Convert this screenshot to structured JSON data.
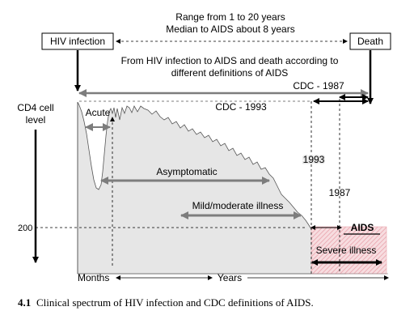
{
  "top_note": {
    "line1": "Range from 1 to 20 years",
    "line2": "Median to AIDS about 8 years"
  },
  "boxes": {
    "hiv_infection": "HIV infection",
    "death": "Death"
  },
  "definitions_note": {
    "line1": "From HIV infection to AIDS and death according to",
    "line2": "different definitions of AIDS"
  },
  "cdc": {
    "cdc_1987": "CDC - 1987",
    "cdc_1993": "CDC - 1993",
    "year_1993": "1993",
    "year_1987": "1987"
  },
  "y_axis": {
    "label_line1": "CD4 cell",
    "label_line2": "level",
    "threshold": "200"
  },
  "phases": {
    "acute": "Acute",
    "asymptomatic": "Asymptomatic",
    "mild_moderate": "Mild/moderate illness",
    "aids": "AIDS",
    "severe": "Severe illness"
  },
  "x_axis": {
    "months": "Months",
    "years": "Years"
  },
  "caption": {
    "number": "4.1",
    "text": "Clinical spectrum of HIV infection and CDC definitions of AIDS."
  },
  "colors": {
    "curve_fill": "#e6e6e6",
    "arrow_gray": "#7d7d7d",
    "aids_hatch": "#e9a3ac",
    "aids_fill": "#f7dde0"
  }
}
